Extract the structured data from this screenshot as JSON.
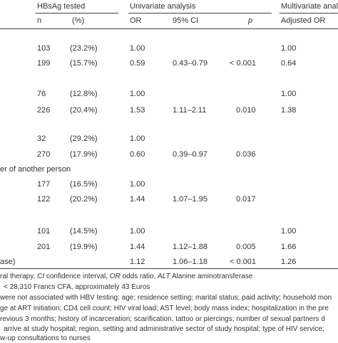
{
  "headers": {
    "group_hbsag": "HBsAg tested",
    "group_univariate": "Univariate analysis",
    "group_multivariate": "Multivariate anal",
    "n": "n",
    "pct": "(%)",
    "or": "OR",
    "ci": "95% CI",
    "p": "p",
    "adj_or": "Adjusted OR"
  },
  "rows": [
    {
      "label": "",
      "n": "103",
      "pct": "(23.2%)",
      "or": "1.00",
      "ci": "",
      "p": "",
      "adj": "1.00"
    },
    {
      "label": "",
      "n": "199",
      "pct": "(15.7%)",
      "or": "0.59",
      "ci": "0.43–0.79",
      "p": "< 0.001",
      "adj": "0.64"
    },
    {
      "label": "",
      "n": "76",
      "pct": "(12.8%)",
      "or": "1.00",
      "ci": "",
      "p": "",
      "adj": "1.00"
    },
    {
      "label": "",
      "n": "226",
      "pct": "(20.4%)",
      "or": "1.53",
      "ci": "1.11–2.11",
      "p": "0.010",
      "adj": "1.38"
    },
    {
      "label": "",
      "n": "32",
      "pct": "(29.2%)",
      "or": "1.00",
      "ci": "",
      "p": "",
      "adj": ""
    },
    {
      "label": "",
      "n": "270",
      "pct": "(17.9%)",
      "or": "0.60",
      "ci": "0.39–0.97",
      "p": "0.036",
      "adj": ""
    },
    {
      "label": "er of another person",
      "n": "",
      "pct": "",
      "or": "",
      "ci": "",
      "p": "",
      "adj": ""
    },
    {
      "label": "",
      "n": "177",
      "pct": "(16.5%)",
      "or": "1.00",
      "ci": "",
      "p": "",
      "adj": ""
    },
    {
      "label": "",
      "n": "122",
      "pct": "(20.2%)",
      "or": "1.44",
      "ci": "1.07–1.95",
      "p": "0.017",
      "adj": ""
    },
    {
      "label": "",
      "n": "101",
      "pct": "(14.5%)",
      "or": "1.00",
      "ci": "",
      "p": "",
      "adj": "1.00"
    },
    {
      "label": "",
      "n": "201",
      "pct": "(19.9%)",
      "or": "1.44",
      "ci": "1.12–1.88",
      "p": "0.005",
      "adj": "1.66"
    },
    {
      "label": "ase)",
      "n": "",
      "pct": "",
      "or": "1.12",
      "ci": "1.06–1.18",
      "p": "< 0.001",
      "adj": "1.26"
    }
  ],
  "footnotes": {
    "f1_pre": "ral therapy, ",
    "f1_ci": "CI",
    "f1_mid1": " confidence interval, ",
    "f1_or": "OR",
    "f1_mid2": " odds ratio, ",
    "f1_alt": "ALT",
    "f1_post": " Alanine aminotransferase",
    "f2": "< 28,310 Francs CFA, approximately 43 Euros",
    "f3": "were not associated with HBV testing: age; residence setting; marital status; paid activity; household mon",
    "f4": "ge at ART initiation; CD4 cell count; HIV viral load; AST level; body mass index; hospitalization in the pre",
    "f5": "revious 3 months; history of incarceration; scarification, tattoo or piercings; number of sexual partners d",
    "f6": "arrive at study hospital; region, setting and administrative sector of study hospital; type of HIV service;",
    "f7": "w-up consultations to nurses"
  }
}
